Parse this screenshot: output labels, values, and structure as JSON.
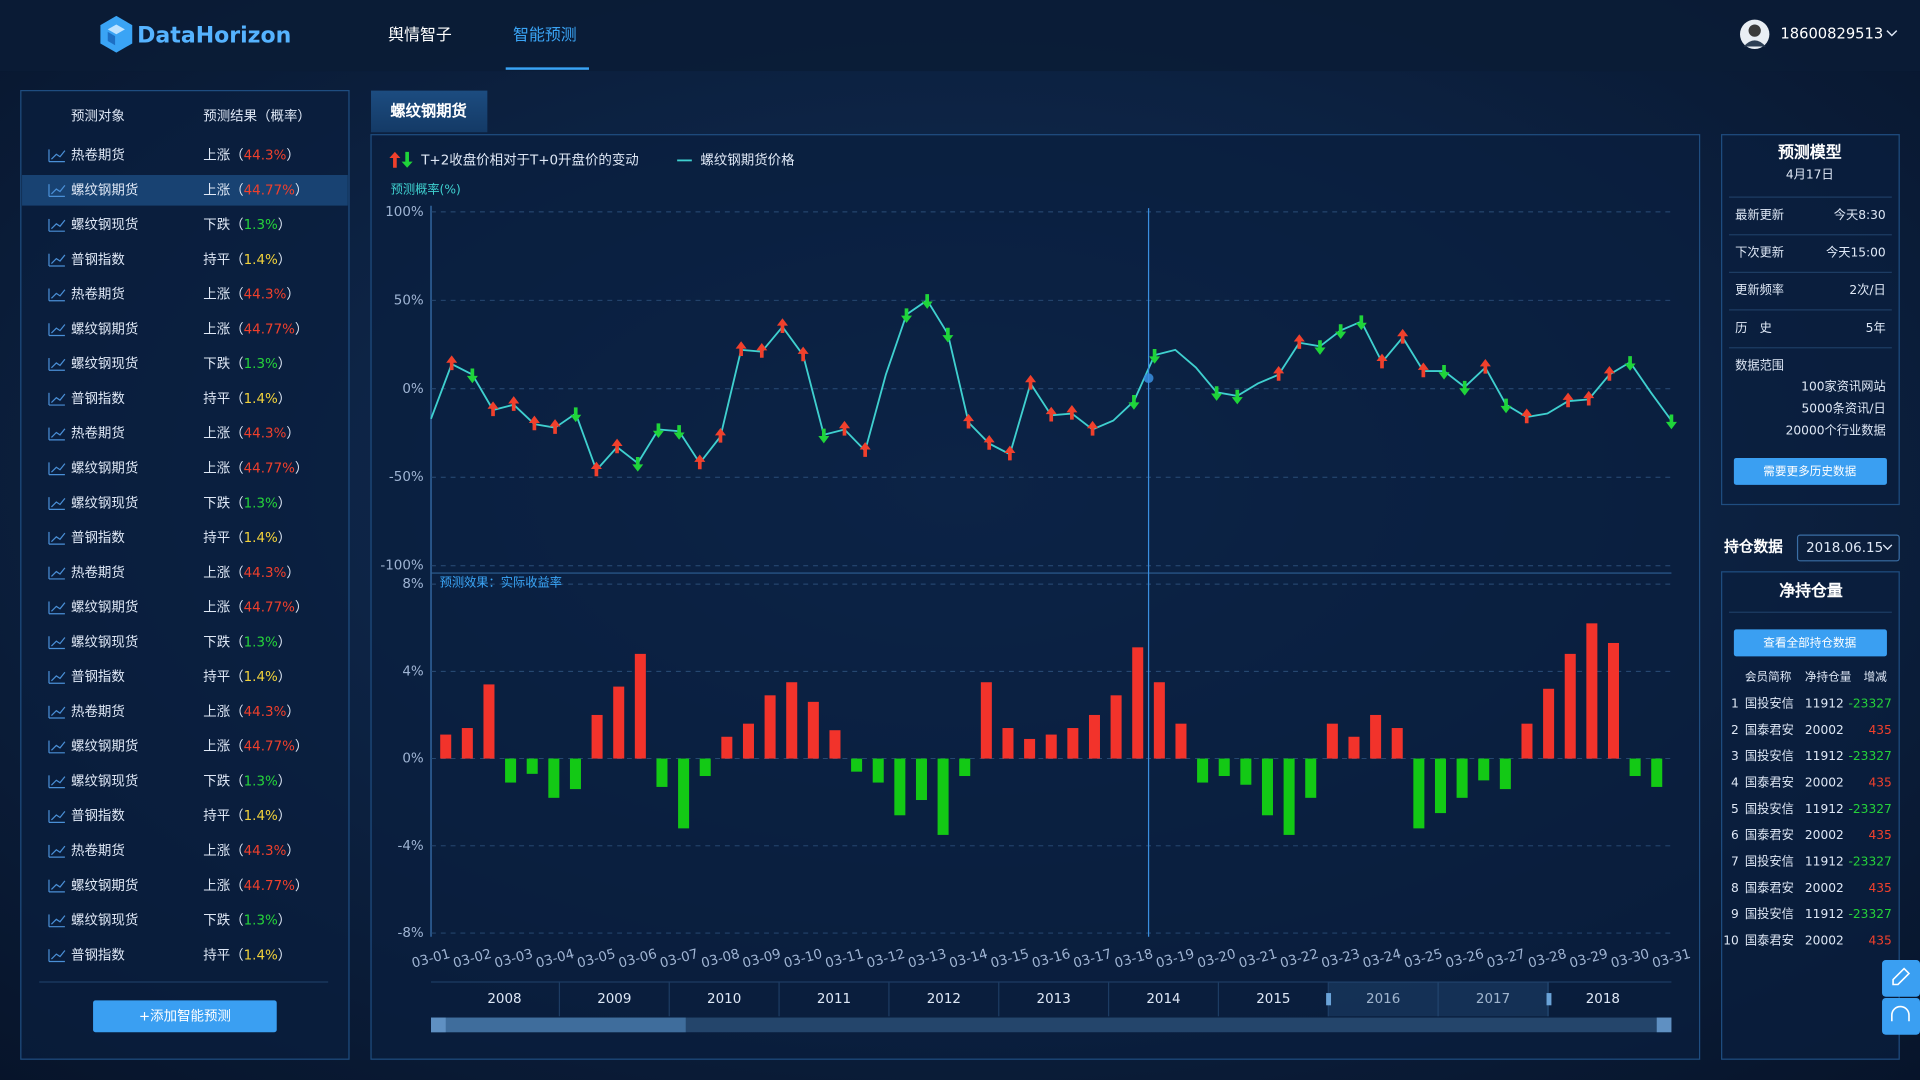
{
  "header": {
    "logo": "DataHorizon",
    "nav": [
      "舆情智子",
      "智能预测"
    ],
    "user": "18600829513"
  },
  "sidebar": {
    "columns": [
      "预测对象",
      "预测结果（概率）"
    ],
    "brackets": [
      "（",
      "）"
    ],
    "result_colors": {
      "上涨": "#f0402c",
      "下跌": "#25d23a",
      "持平": "#f2d23b"
    },
    "rows": [
      {
        "target": "热卷期货",
        "result": "上涨",
        "prob": "44.3%"
      },
      {
        "target": "螺纹钢期货",
        "result": "上涨",
        "prob": "44.77%"
      },
      {
        "target": "螺纹钢现货",
        "result": "下跌",
        "prob": "1.3%"
      },
      {
        "target": "普钢指数",
        "result": "持平",
        "prob": "1.4%"
      },
      {
        "target": "热卷期货",
        "result": "上涨",
        "prob": "44.3%"
      },
      {
        "target": "螺纹钢期货",
        "result": "上涨",
        "prob": "44.77%"
      },
      {
        "target": "螺纹钢现货",
        "result": "下跌",
        "prob": "1.3%"
      },
      {
        "target": "普钢指数",
        "result": "持平",
        "prob": "1.4%"
      },
      {
        "target": "热卷期货",
        "result": "上涨",
        "prob": "44.3%"
      },
      {
        "target": "螺纹钢期货",
        "result": "上涨",
        "prob": "44.77%"
      },
      {
        "target": "螺纹钢现货",
        "result": "下跌",
        "prob": "1.3%"
      },
      {
        "target": "普钢指数",
        "result": "持平",
        "prob": "1.4%"
      },
      {
        "target": "热卷期货",
        "result": "上涨",
        "prob": "44.3%"
      },
      {
        "target": "螺纹钢期货",
        "result": "上涨",
        "prob": "44.77%"
      },
      {
        "target": "螺纹钢现货",
        "result": "下跌",
        "prob": "1.3%"
      },
      {
        "target": "普钢指数",
        "result": "持平",
        "prob": "1.4%"
      },
      {
        "target": "热卷期货",
        "result": "上涨",
        "prob": "44.3%"
      },
      {
        "target": "螺纹钢期货",
        "result": "上涨",
        "prob": "44.77%"
      },
      {
        "target": "螺纹钢现货",
        "result": "下跌",
        "prob": "1.3%"
      },
      {
        "target": "普钢指数",
        "result": "持平",
        "prob": "1.4%"
      },
      {
        "target": "热卷期货",
        "result": "上涨",
        "prob": "44.3%"
      },
      {
        "target": "螺纹钢期货",
        "result": "上涨",
        "prob": "44.77%"
      },
      {
        "target": "螺纹钢现货",
        "result": "下跌",
        "prob": "1.3%"
      },
      {
        "target": "普钢指数",
        "result": "持平",
        "prob": "1.4%"
      }
    ],
    "button": "+添加智能预测"
  },
  "tab": "螺纹钢期货",
  "chart_data": [
    {
      "type": "line",
      "marker_legend": "T+2收盘价相对于T+0开盘价的变动",
      "y_label": "预测概率(%)",
      "up_color": "#f0402c",
      "down_color": "#1fd43a",
      "categories": [
        "03-01",
        null,
        "03-02",
        null,
        "03-03",
        null,
        "03-04",
        null,
        "03-05",
        null,
        "03-06",
        null,
        "03-07",
        null,
        "03-08",
        null,
        "03-09",
        null,
        "03-10",
        null,
        "03-11",
        null,
        "03-12",
        null,
        "03-13",
        null,
        "03-14",
        null,
        "03-15",
        null,
        "03-16",
        null,
        "03-17",
        null,
        "03-18",
        null,
        "03-19",
        null,
        "03-20",
        null,
        "03-21",
        null,
        "03-22",
        null,
        "03-23",
        null,
        "03-24",
        null,
        "03-25",
        null,
        "03-26",
        null,
        "03-27",
        null,
        "03-28",
        null,
        "03-29",
        null,
        "03-30",
        null,
        "03-31"
      ],
      "series": [
        {
          "name": "螺纹钢期货价格",
          "color": "#3fd0cf",
          "values": [
            -17,
            14,
            8,
            -12,
            -9,
            -20,
            -22,
            -14,
            -46,
            -33,
            -42,
            -23,
            -24,
            -42,
            -27,
            22,
            21,
            35,
            19,
            -26,
            -23,
            -35,
            8,
            42,
            50,
            31,
            -19,
            -31,
            -37,
            3,
            -15,
            -14,
            -23,
            -18,
            -7,
            19,
            22,
            12,
            -2,
            -4,
            3,
            8,
            26,
            24,
            33,
            38,
            15,
            29,
            10,
            10,
            1,
            12,
            -9,
            -16,
            -14,
            -7,
            -6,
            8,
            15,
            -2,
            -18
          ]
        }
      ],
      "directions": [
        null,
        "up",
        "down",
        "up",
        "up",
        "up",
        "up",
        "down",
        "up",
        "up",
        "down",
        "down",
        "down",
        "up",
        "up",
        "up",
        "up",
        "up",
        "up",
        "down",
        "up",
        "up",
        null,
        "down",
        "down",
        "down",
        "up",
        "up",
        "up",
        "up",
        "up",
        "up",
        "up",
        null,
        "down",
        "down",
        null,
        null,
        "down",
        "down",
        null,
        "up",
        "up",
        "down",
        "down",
        "down",
        "up",
        "up",
        "up",
        "down",
        "down",
        "up",
        "down",
        "up",
        null,
        "up",
        "up",
        "up",
        "down",
        null,
        "down"
      ],
      "ylim": [
        -100,
        100
      ],
      "yticks": [
        {
          "value": -100,
          "label": "-100%"
        },
        {
          "value": -50,
          "label": "-50%"
        },
        {
          "value": 0,
          "label": "0%"
        },
        {
          "value": 50,
          "label": "50%"
        },
        {
          "value": 100,
          "label": "100%"
        }
      ],
      "grid": true
    },
    {
      "type": "bar",
      "annotation": "预测效果：实际收益率",
      "up_color": "#f2332b",
      "down_color": "#13c915",
      "values": [
        1.1,
        1.4,
        3.4,
        -1.1,
        -0.7,
        -1.8,
        -1.4,
        2,
        3.3,
        4.8,
        -1.3,
        -3.2,
        -0.8,
        1,
        1.6,
        2.9,
        3.5,
        2.6,
        1.3,
        -0.6,
        -1.1,
        -2.6,
        -1.9,
        -3.5,
        -0.8,
        3.5,
        1.4,
        0.9,
        1.1,
        1.4,
        2,
        2.9,
        5.1,
        3.5,
        1.6,
        -1.1,
        -0.8,
        -1.2,
        -2.6,
        -3.5,
        -1.8,
        1.6,
        1,
        2,
        1.4,
        -3.2,
        -2.5,
        -1.8,
        -1,
        -1.4,
        1.6,
        3.2,
        4.8,
        6.2,
        5.3,
        -0.8,
        -1.3
      ],
      "ylim": [
        -8,
        8
      ],
      "yticks": [
        {
          "value": -8,
          "label": "-8%"
        },
        {
          "value": -4,
          "label": "-4%"
        },
        {
          "value": 0,
          "label": "0%"
        },
        {
          "value": 4,
          "label": "4%"
        },
        {
          "value": 8,
          "label": "8%"
        }
      ],
      "grid": true
    }
  ],
  "timeline": {
    "years": [
      "2008",
      "2009",
      "2010",
      "2011",
      "2012",
      "2013",
      "2014",
      "2015",
      "2016",
      "2017",
      "2018"
    ]
  },
  "model": {
    "title": "预测模型",
    "date": "4月17日",
    "rows": [
      {
        "label": "最新更新",
        "value": "今天8:30"
      },
      {
        "label": "下次更新",
        "value": "今天15:00"
      },
      {
        "label": "更新频率",
        "value": "2次/日"
      },
      {
        "label": "历　史",
        "value": "5年"
      }
    ],
    "range_label": "数据范围",
    "range": [
      "100家资讯网站",
      "5000条资讯/日",
      "20000个行业数据"
    ],
    "button": "需要更多历史数据"
  },
  "positions": {
    "label": "持仓数据",
    "date": "2018.06.15",
    "title": "净持仓量",
    "button": "查看全部持仓数据",
    "columns": [
      "会员简称",
      "净持仓量",
      "增减"
    ],
    "rows": [
      {
        "rank": 1,
        "name": "国投安信",
        "value": 11912,
        "change": -23327
      },
      {
        "rank": 2,
        "name": "国泰君安",
        "value": 20002,
        "change": 435
      },
      {
        "rank": 3,
        "name": "国投安信",
        "value": 11912,
        "change": -23327
      },
      {
        "rank": 4,
        "name": "国泰君安",
        "value": 20002,
        "change": 435
      },
      {
        "rank": 5,
        "name": "国投安信",
        "value": 11912,
        "change": -23327
      },
      {
        "rank": 6,
        "name": "国泰君安",
        "value": 20002,
        "change": 435
      },
      {
        "rank": 7,
        "name": "国投安信",
        "value": 11912,
        "change": -23327
      },
      {
        "rank": 8,
        "name": "国泰君安",
        "value": 20002,
        "change": 435
      },
      {
        "rank": 9,
        "name": "国投安信",
        "value": 11912,
        "change": -23327
      },
      {
        "rank": 10,
        "name": "国泰君安",
        "value": 20002,
        "change": 435
      }
    ]
  }
}
